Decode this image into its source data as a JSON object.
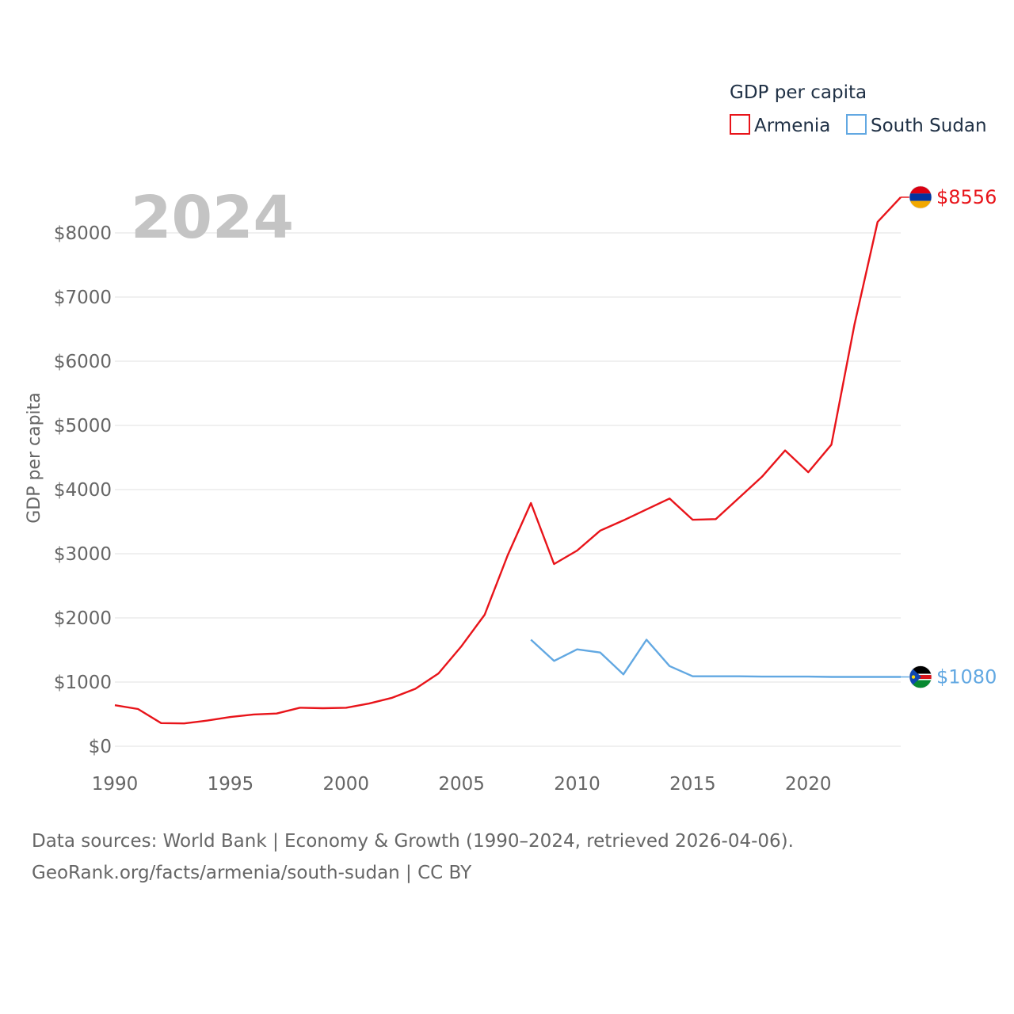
{
  "chart_data": {
    "type": "line",
    "legend_title": "GDP per capita",
    "ylabel": "GDP per capita",
    "current_year_label": "2024",
    "xlim": [
      1990,
      2024
    ],
    "ylim": [
      0,
      8500
    ],
    "x_ticks": [
      1990,
      1995,
      2000,
      2005,
      2010,
      2015,
      2020
    ],
    "y_ticks": [
      0,
      1000,
      2000,
      3000,
      4000,
      5000,
      6000,
      7000,
      8000
    ],
    "y_tick_labels": [
      "$0",
      "$1000",
      "$2000",
      "$3000",
      "$4000",
      "$5000",
      "$6000",
      "$7000",
      "$8000"
    ],
    "grid": true,
    "legend_position": "top-right",
    "series": [
      {
        "name": "Armenia",
        "color": "#e8141a",
        "end_label": "$8556",
        "flag_icon": "armenia-flag-icon",
        "x": [
          1990,
          1991,
          1992,
          1993,
          1994,
          1995,
          1996,
          1997,
          1998,
          1999,
          2000,
          2001,
          2002,
          2003,
          2004,
          2005,
          2006,
          2007,
          2008,
          2009,
          2010,
          2011,
          2012,
          2013,
          2014,
          2015,
          2016,
          2017,
          2018,
          2019,
          2020,
          2021,
          2022,
          2023,
          2024
        ],
        "values": [
          640,
          580,
          360,
          355,
          400,
          455,
          495,
          510,
          600,
          592,
          600,
          665,
          755,
          895,
          1135,
          1560,
          2050,
          2980,
          3790,
          2840,
          3050,
          3360,
          3520,
          3690,
          3860,
          3530,
          3540,
          3870,
          4200,
          4610,
          4270,
          4700,
          6570,
          8170,
          8556
        ]
      },
      {
        "name": "South Sudan",
        "color": "#62a8e2",
        "end_label": "$1080",
        "flag_icon": "south-sudan-flag-icon",
        "x": [
          2008,
          2009,
          2010,
          2011,
          2012,
          2013,
          2014,
          2015,
          2016,
          2017,
          2018,
          2019,
          2020,
          2021,
          2022,
          2023,
          2024
        ],
        "values": [
          1660,
          1330,
          1510,
          1460,
          1120,
          1660,
          1250,
          1090,
          1090,
          1090,
          1085,
          1085,
          1085,
          1080,
          1080,
          1080,
          1080
        ]
      }
    ]
  },
  "footer": {
    "line1": "Data sources: World Bank | Economy & Growth (1990–2024, retrieved 2026-04-06).",
    "line2": "GeoRank.org/facts/armenia/south-sudan | CC BY"
  }
}
